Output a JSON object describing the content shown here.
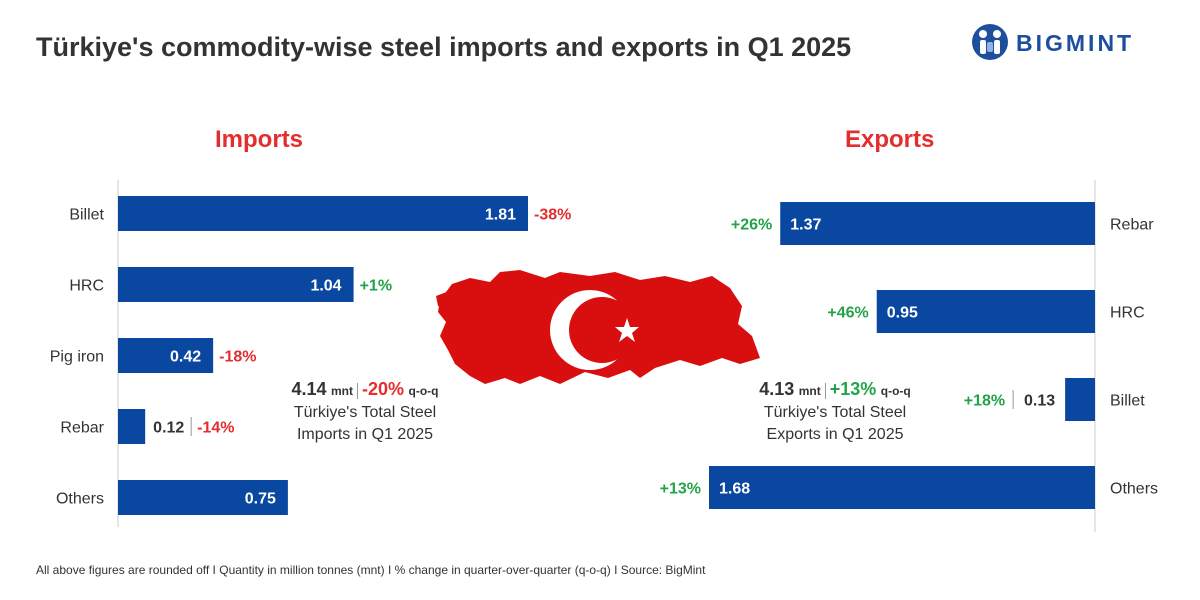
{
  "title": "Türkiye's commodity-wise steel imports and exports in Q1 2025",
  "logo": {
    "text": "BIGMINT",
    "color": "#1d4f9e"
  },
  "footnote": "All above figures are rounded off  I  Quantity in million tonnes (mnt)  I  % change in quarter-over-quarter (q-o-q)  I  Source: BigMint",
  "colors": {
    "bar": "#0a47a0",
    "negative": "#e52d2d",
    "positive": "#22a34a",
    "map": "#d90f0f"
  },
  "map_icon": "turkey-flag-map",
  "imports_summary": {
    "total": "4.14",
    "unit": "mnt",
    "change": "-20%",
    "change_unit": "q-o-q",
    "line1": "Türkiye's Total Steel",
    "line2": "Imports in Q1 2025"
  },
  "exports_summary": {
    "total": "4.13",
    "unit": "mnt",
    "change": "+13%",
    "change_unit": "q-o-q",
    "line1": "Türkiye's Total Steel",
    "line2": "Exports  in Q1 2025"
  },
  "chart_data": [
    {
      "type": "bar",
      "orientation": "horizontal",
      "title": "Imports",
      "unit": "mnt",
      "xlim": [
        0,
        1.81
      ],
      "categories": [
        "Billet",
        "HRC",
        "Pig iron",
        "Rebar",
        "Others"
      ],
      "values": [
        1.81,
        1.04,
        0.42,
        0.12,
        0.75
      ],
      "value_labels": [
        "1.81",
        "1.04",
        "0.42",
        "0.12",
        "0.75"
      ],
      "changes": [
        "-38%",
        "+1%",
        "-18%",
        "-14%",
        ""
      ]
    },
    {
      "type": "bar",
      "orientation": "horizontal",
      "title": "Exports",
      "unit": "mnt",
      "xlim": [
        0,
        1.68
      ],
      "categories": [
        "Rebar",
        "HRC",
        "Billet",
        "Others"
      ],
      "values": [
        1.37,
        0.95,
        0.13,
        1.68
      ],
      "value_labels": [
        "1.37",
        "0.95",
        "0.13",
        "1.68"
      ],
      "changes": [
        "+26%",
        "+46%",
        "+18%",
        "+13%"
      ]
    }
  ]
}
